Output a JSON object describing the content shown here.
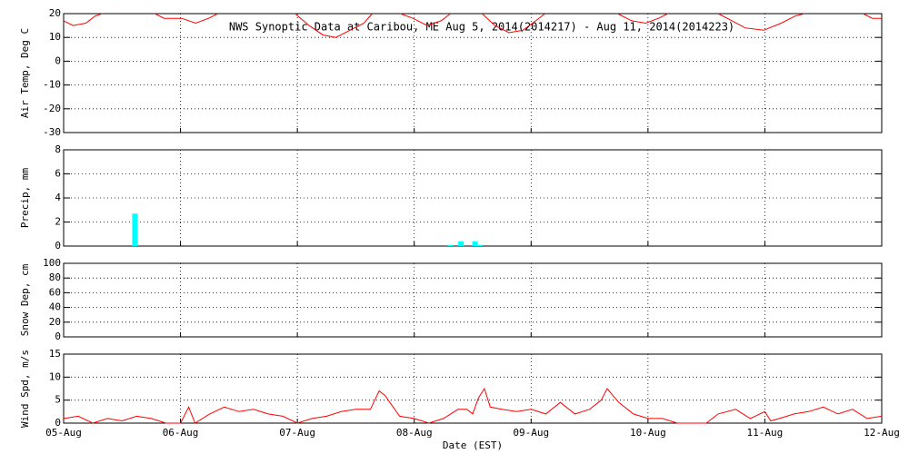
{
  "chart_data": [
    {
      "type": "line",
      "title": "NWS Synoptic Data at Caribou, ME   Aug  5, 2014(2014217) - Aug 11, 2014(2014223)",
      "ylabel": "Air Temp, Deg C",
      "xlim": [
        0,
        7
      ],
      "xticks": [
        0,
        1,
        2,
        3,
        4,
        5,
        6,
        7
      ],
      "ylim": [
        -30,
        20
      ],
      "yticks": [
        -30,
        -20,
        -10,
        0,
        10,
        20
      ],
      "grid": true,
      "series": [
        {
          "color": "#ff0000",
          "x": [
            0,
            0.08,
            0.19,
            0.27,
            0.33,
            0.55,
            0.78,
            0.86,
            1.01,
            1.13,
            1.24,
            1.32,
            1.6,
            1.98,
            2.1,
            2.22,
            2.33,
            2.45,
            2.57,
            2.64,
            2.75,
            2.88,
            2.99,
            3.11,
            3.23,
            3.31,
            3.45,
            3.58,
            3.69,
            3.81,
            3.93,
            4.04,
            4.12,
            4.4,
            4.74,
            4.86,
            4.98,
            5.09,
            5.17,
            5.4,
            5.6,
            5.72,
            5.83,
            5.99,
            6.14,
            6.26,
            6.34,
            6.6,
            6.84,
            6.92,
            7.0
          ],
          "values": [
            17,
            15,
            16,
            19,
            20,
            null,
            20,
            18,
            18,
            16,
            18,
            20,
            null,
            20,
            15,
            11,
            10,
            13,
            16,
            20,
            null,
            20,
            18,
            15,
            17,
            20,
            null,
            20,
            15,
            12,
            13,
            17,
            20,
            null,
            20,
            17,
            16,
            18,
            20,
            null,
            20,
            17,
            14,
            13,
            16,
            19,
            20,
            null,
            20,
            18,
            18
          ]
        }
      ]
    },
    {
      "type": "bar",
      "ylabel": "Precip, mm",
      "xlim": [
        0,
        7
      ],
      "xticks": [
        0,
        1,
        2,
        3,
        4,
        5,
        6,
        7
      ],
      "ylim": [
        0,
        8
      ],
      "yticks": [
        0,
        2,
        4,
        6,
        8
      ],
      "grid": true,
      "series": [
        {
          "color": "#00ffff",
          "x": [
            0.61,
            3.31,
            3.4,
            3.52,
            3.56
          ],
          "values": [
            2.7,
            0.1,
            0.4,
            0.4,
            0.1
          ]
        }
      ]
    },
    {
      "type": "line",
      "ylabel": "Snow Dep, cm",
      "xlim": [
        0,
        7
      ],
      "xticks": [
        0,
        1,
        2,
        3,
        4,
        5,
        6,
        7
      ],
      "ylim": [
        0,
        100
      ],
      "yticks": [
        0,
        20,
        40,
        60,
        80,
        100
      ],
      "grid": true,
      "series": []
    },
    {
      "type": "line",
      "ylabel": "Wind Spd, m/s",
      "xlabel": "Date (EST)",
      "xlim": [
        0,
        7
      ],
      "xticks": [
        {
          "value": 0,
          "label": "05-Aug"
        },
        {
          "value": 1,
          "label": "06-Aug"
        },
        {
          "value": 2,
          "label": "07-Aug"
        },
        {
          "value": 3,
          "label": "08-Aug"
        },
        {
          "value": 4,
          "label": "09-Aug"
        },
        {
          "value": 5,
          "label": "10-Aug"
        },
        {
          "value": 6,
          "label": "11-Aug"
        },
        {
          "value": 7,
          "label": "12-Aug"
        }
      ],
      "ylim": [
        0,
        15
      ],
      "yticks": [
        0,
        5,
        10,
        15
      ],
      "grid": true,
      "series": [
        {
          "color": "#ff0000",
          "x": [
            0,
            0.125,
            0.25,
            0.375,
            0.5,
            0.625,
            0.75,
            0.875,
            1,
            1.07,
            1.125,
            1.25,
            1.375,
            1.5,
            1.625,
            1.75,
            1.875,
            2,
            2.125,
            2.25,
            2.375,
            2.5,
            2.625,
            2.7,
            2.75,
            2.875,
            3,
            3.125,
            3.25,
            3.375,
            3.45,
            3.5,
            3.55,
            3.6,
            3.65,
            3.75,
            3.875,
            4,
            4.125,
            4.25,
            4.375,
            4.5,
            4.6,
            4.65,
            4.75,
            4.875,
            5,
            5.125,
            5.25,
            5.375,
            5.5,
            5.6,
            5.75,
            5.875,
            6,
            6.05,
            6.125,
            6.25,
            6.375,
            6.5,
            6.625,
            6.75,
            6.875,
            7
          ],
          "values": [
            1,
            1.5,
            0,
            1,
            0.5,
            1.5,
            1,
            0,
            0,
            3.5,
            0,
            2,
            3.5,
            2.5,
            3,
            2,
            1.5,
            0,
            1,
            1.5,
            2.5,
            3,
            3,
            7,
            6,
            1.5,
            1,
            0,
            1,
            3,
            3,
            2,
            5.5,
            7.5,
            3.5,
            3,
            2.5,
            3,
            2,
            4.5,
            2,
            3,
            5,
            7.5,
            4.5,
            2,
            1,
            1,
            0,
            0,
            0,
            2,
            3,
            1,
            2.5,
            0.5,
            1,
            2,
            2.5,
            3.5,
            2,
            3,
            1,
            1.5
          ]
        }
      ]
    }
  ]
}
